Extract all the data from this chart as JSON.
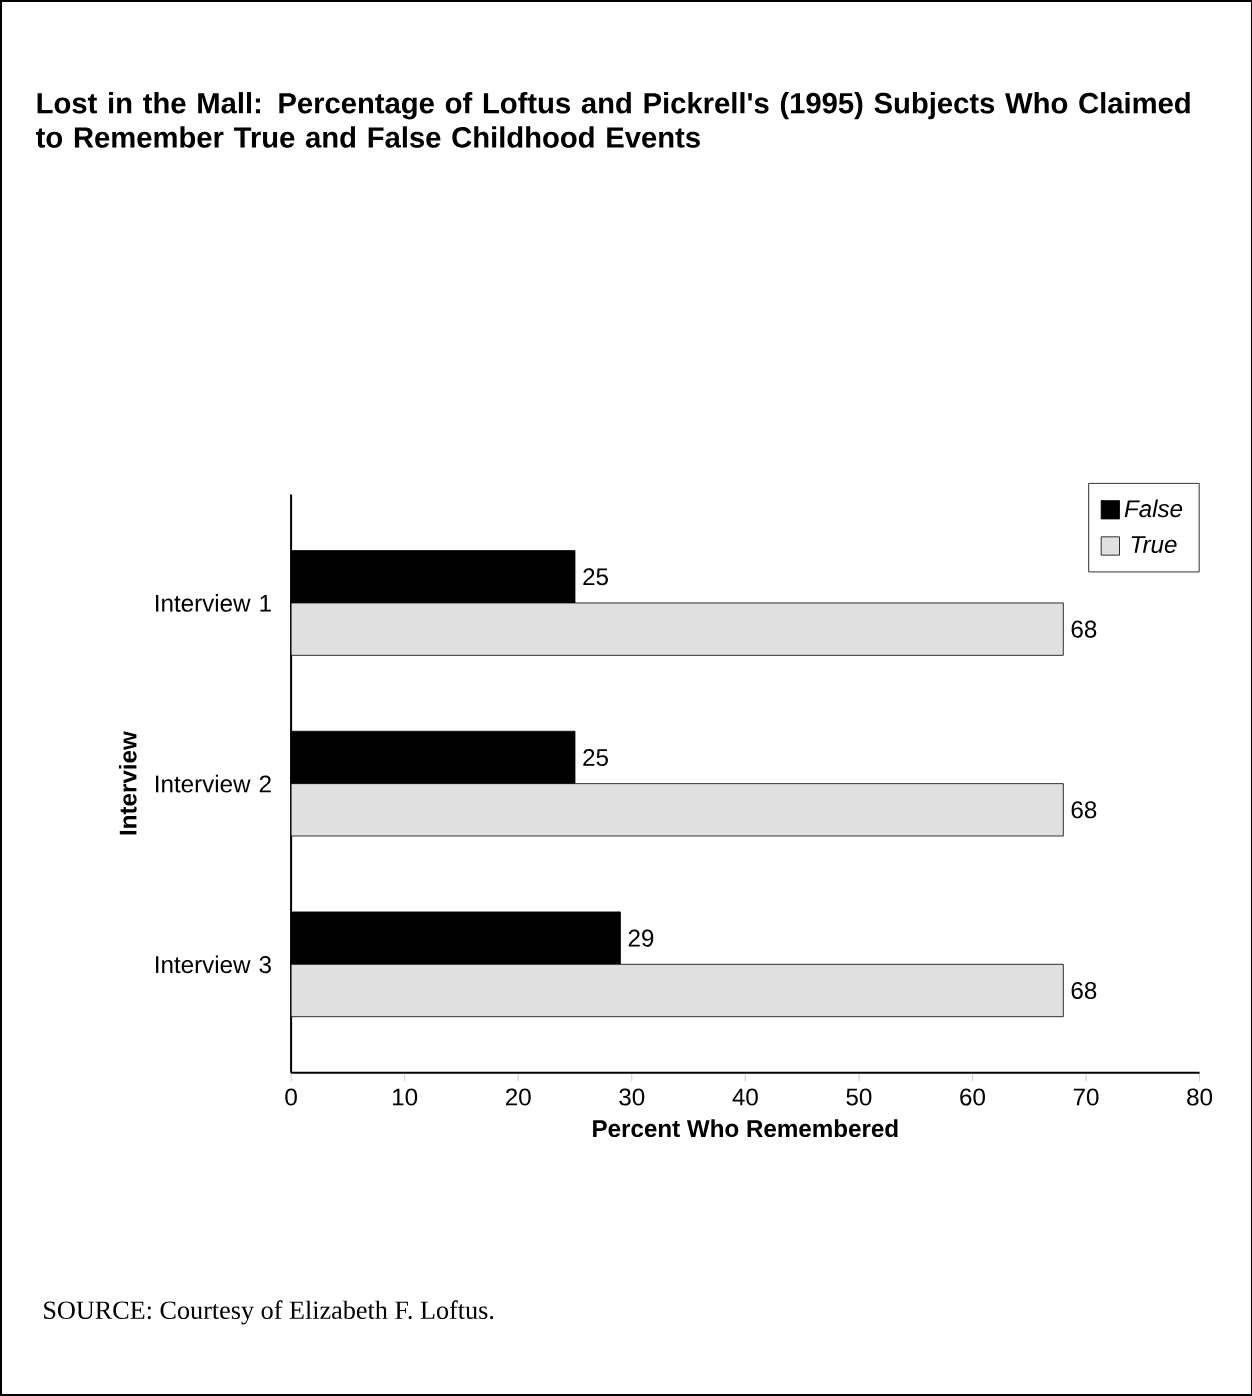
{
  "chart_data": {
    "type": "bar",
    "orientation": "horizontal",
    "title": "Lost in the Mall: Percentage of Loftus and Pickrell's (1995) Subjects Who Claimed to Remember True and False Childhood Events",
    "xlabel": "Percent Who Remembered",
    "ylabel": "Interview",
    "categories": [
      "Interview 1",
      "Interview 2",
      "Interview 3"
    ],
    "series": [
      {
        "name": "False",
        "color": "#000000",
        "values": [
          25,
          25,
          29
        ]
      },
      {
        "name": "True",
        "color": "#e0e0e0",
        "values": [
          68,
          68,
          68
        ]
      }
    ],
    "xlim": [
      0,
      80
    ],
    "xticks": [
      0,
      10,
      20,
      30,
      40,
      50,
      60,
      70,
      80
    ],
    "data_labels": true,
    "legend": "top right",
    "annotations": [
      "SOURCE: Courtesy of Elizabeth F. Loftus."
    ]
  }
}
